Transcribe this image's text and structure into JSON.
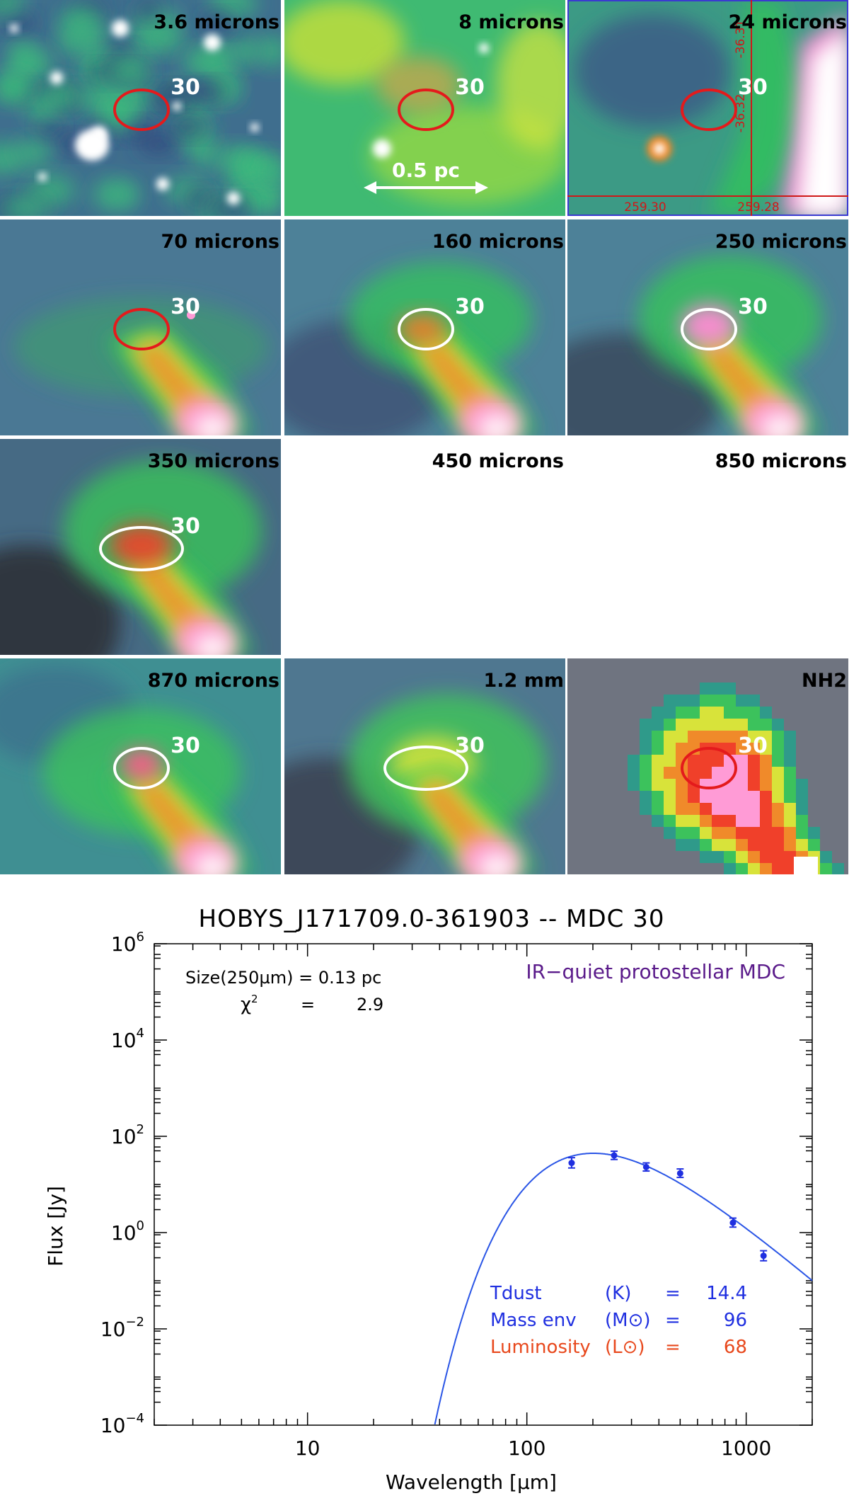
{
  "panels": [
    {
      "label": "3.6 microns",
      "source": "30",
      "map": "ir",
      "ellipse": "#e41a1c",
      "has_image": true,
      "scalebar": "",
      "coords": []
    },
    {
      "label": "8 microns",
      "source": "30",
      "map": "ir8",
      "ellipse": "#e41a1c",
      "has_image": true,
      "scalebar": "0.5 pc",
      "coords": []
    },
    {
      "label": "24 microns",
      "source": "30",
      "map": "ir24",
      "ellipse": "#e41a1c",
      "has_image": true,
      "scalebar": "",
      "coords": [
        "-36.31",
        "-36.32",
        "259.30",
        "259.28"
      ]
    },
    {
      "label": "70 microns",
      "source": "30",
      "map": "fir70",
      "ellipse": "#e41a1c",
      "has_image": true,
      "scalebar": "",
      "coords": []
    },
    {
      "label": "160 microns",
      "source": "30",
      "map": "fir160",
      "ellipse": "#ffffff",
      "has_image": true,
      "scalebar": "",
      "coords": []
    },
    {
      "label": "250 microns",
      "source": "30",
      "map": "fir250",
      "ellipse": "#ffffff",
      "has_image": true,
      "scalebar": "",
      "coords": []
    },
    {
      "label": "350 microns",
      "source": "30",
      "map": "fir350",
      "ellipse": "#ffffff",
      "has_image": true,
      "scalebar": "",
      "coords": []
    },
    {
      "label": "450 microns",
      "source": "",
      "map": "none",
      "ellipse": "",
      "has_image": false,
      "scalebar": "",
      "coords": []
    },
    {
      "label": "850 microns",
      "source": "",
      "map": "none",
      "ellipse": "",
      "has_image": false,
      "scalebar": "",
      "coords": []
    },
    {
      "label": "870 microns",
      "source": "30",
      "map": "smm870",
      "ellipse": "#ffffff",
      "has_image": true,
      "scalebar": "",
      "coords": []
    },
    {
      "label": "1.2 mm",
      "source": "30",
      "map": "mm12",
      "ellipse": "#ffffff",
      "has_image": true,
      "scalebar": "",
      "coords": []
    },
    {
      "label": "NH2",
      "source": "30",
      "map": "nh2",
      "ellipse": "#e41a1c",
      "has_image": true,
      "scalebar": "",
      "coords": []
    }
  ],
  "chart_data": {
    "type": "scatter",
    "title": "HOBYS_J171709.0-361903   --   MDC 30",
    "xlabel": "Wavelength [µm]",
    "ylabel": "Flux [Jy]",
    "xscale": "log",
    "yscale": "log",
    "xlim": [
      2,
      2000
    ],
    "ylim": [
      0.0001,
      1000000
    ],
    "x_ticks": [
      10,
      100,
      1000
    ],
    "y_ticks": [
      {
        "value": 0.0001,
        "base": "10",
        "exp": "−4"
      },
      {
        "value": 0.01,
        "base": "10",
        "exp": "−2"
      },
      {
        "value": 1,
        "base": "10",
        "exp": "0"
      },
      {
        "value": 100,
        "base": "10",
        "exp": "2"
      },
      {
        "value": 10000,
        "base": "10",
        "exp": "4"
      },
      {
        "value": 1000000,
        "base": "10",
        "exp": "6"
      }
    ],
    "series": [
      {
        "points": [
          {
            "x": 160,
            "y": 28,
            "err": [
              22,
              36
            ]
          },
          {
            "x": 250,
            "y": 40,
            "err": [
              33,
              49
            ]
          },
          {
            "x": 350,
            "y": 23,
            "err": [
              19,
              28
            ]
          },
          {
            "x": 500,
            "y": 17,
            "err": [
              14,
              21
            ]
          },
          {
            "x": 870,
            "y": 1.6,
            "err": [
              1.3,
              2.0
            ]
          },
          {
            "x": 1200,
            "y": 0.33,
            "err": [
              0.26,
              0.42
            ]
          }
        ],
        "color": "#1f2fe0"
      }
    ],
    "fit": {
      "type": "modified-blackbody",
      "tdust": 14.4,
      "beta": 2.0,
      "color": "#2a55e6"
    },
    "annotations": {
      "size": "Size(250µm) = 0.13 pc",
      "chi2_label": "χ",
      "chi2_exp": "2",
      "chi2_eq": "=",
      "chi2_value": "2.9",
      "category": "IR−quiet protostellar MDC",
      "params": [
        {
          "name": "Tdust",
          "unit": "(K)",
          "eq": "=",
          "value": "14.4",
          "color": "#1f2fe0"
        },
        {
          "name": "Mass env",
          "unit": "(M⊙)",
          "eq": "=",
          "value": "96",
          "color": "#1f2fe0"
        },
        {
          "name": "Luminosity",
          "unit": "(L⊙)",
          "eq": "=",
          "value": "68",
          "color": "#e8481c"
        }
      ]
    },
    "colors": {
      "category": "#5a1a8a",
      "axis": "#000000"
    }
  }
}
